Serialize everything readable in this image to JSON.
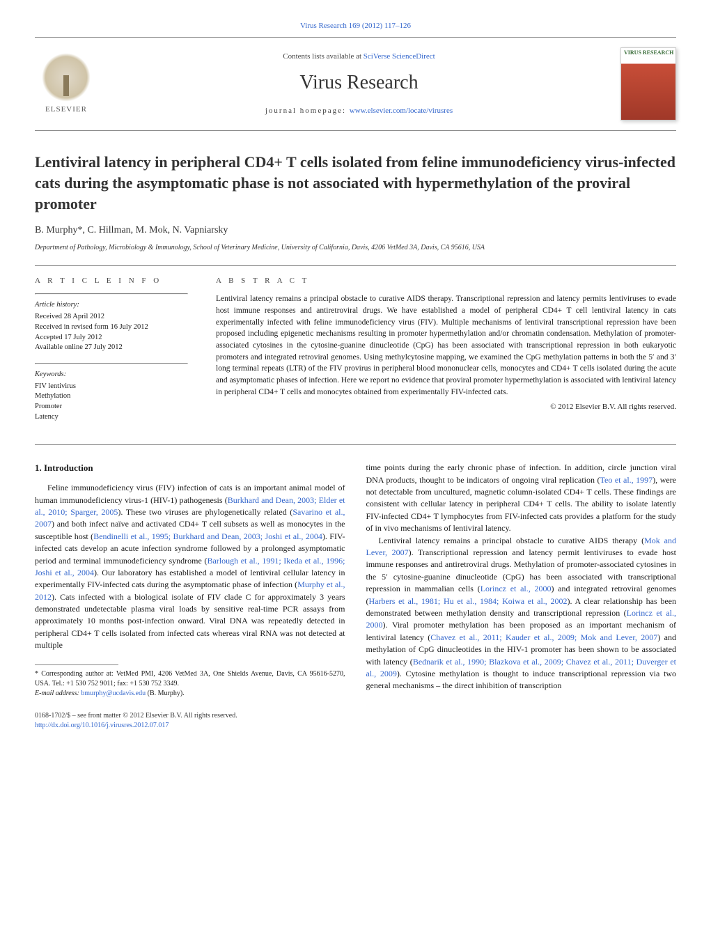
{
  "top_link_prefix": "Virus Research 169 (2012) 117–126",
  "header": {
    "contents_prefix": "Contents lists available at ",
    "contents_link": "SciVerse ScienceDirect",
    "journal": "Virus Research",
    "homepage_prefix": "journal homepage: ",
    "homepage_link": "www.elsevier.com/locate/virusres",
    "elsevier": "ELSEVIER",
    "cover_title": "VIRUS RESEARCH"
  },
  "title": "Lentiviral latency in peripheral CD4+ T cells isolated from feline immunodeficiency virus-infected cats during the asymptomatic phase is not associated with hypermethylation of the proviral promoter",
  "authors": "B. Murphy*, C. Hillman, M. Mok, N. Vapniarsky",
  "affiliation": "Department of Pathology, Microbiology & Immunology, School of Veterinary Medicine, University of California, Davis, 4206 VetMed 3A, Davis, CA 95616, USA",
  "info": {
    "label": "A R T I C L E   I N F O",
    "history_title": "Article history:",
    "history": [
      "Received 28 April 2012",
      "Received in revised form 16 July 2012",
      "Accepted 17 July 2012",
      "Available online 27 July 2012"
    ],
    "keywords_title": "Keywords:",
    "keywords": [
      "FIV lentivirus",
      "Methylation",
      "Promoter",
      "Latency"
    ]
  },
  "abstract": {
    "label": "A B S T R A C T",
    "text": "Lentiviral latency remains a principal obstacle to curative AIDS therapy. Transcriptional repression and latency permits lentiviruses to evade host immune responses and antiretroviral drugs. We have established a model of peripheral CD4+ T cell lentiviral latency in cats experimentally infected with feline immunodeficiency virus (FIV). Multiple mechanisms of lentiviral transcriptional repression have been proposed including epigenetic mechanisms resulting in promoter hypermethylation and/or chromatin condensation. Methylation of promoter-associated cytosines in the cytosine-guanine dinucleotide (CpG) has been associated with transcriptional repression in both eukaryotic promoters and integrated retroviral genomes. Using methylcytosine mapping, we examined the CpG methylation patterns in both the 5′ and 3′ long terminal repeats (LTR) of the FIV provirus in peripheral blood mononuclear cells, monocytes and CD4+ T cells isolated during the acute and asymptomatic phases of infection. Here we report no evidence that proviral promoter hypermethylation is associated with lentiviral latency in peripheral CD4+ T cells and monocytes obtained from experimentally FIV-infected cats.",
    "copyright": "© 2012 Elsevier B.V. All rights reserved."
  },
  "body": {
    "heading": "1.  Introduction",
    "p1a": "Feline immunodeficiency virus (FIV) infection of cats is an important animal model of human immunodeficiency virus-1 (HIV-1) pathogenesis (",
    "c1": "Burkhard and Dean, 2003; Elder et al., 2010; Sparger, 2005",
    "p1b": "). These two viruses are phylogenetically related (",
    "c2": "Savarino et al., 2007",
    "p1c": ") and both infect naïve and activated CD4+ T cell subsets as well as monocytes in the susceptible host (",
    "c3": "Bendinelli et al., 1995; Burkhard and Dean, 2003; Joshi et al., 2004",
    "p1d": "). FIV-infected cats develop an acute infection syndrome followed by a prolonged asymptomatic period and terminal immunodeficiency syndrome (",
    "c4": "Barlough et al., 1991; Ikeda et al., 1996; Joshi et al., 2004",
    "p1e": "). Our laboratory has established a model of lentiviral cellular latency in experimentally FIV-infected cats during the asymptomatic phase of infection (",
    "c5": "Murphy et al., 2012",
    "p1f": "). Cats infected with a biological isolate of FIV clade C for approximately 3 years demonstrated undetectable plasma viral loads by sensitive real-time PCR assays from approximately 10 months post-infection onward. Viral DNA was repeatedly detected in peripheral CD4+ T cells isolated from infected cats whereas viral RNA was not detected at multiple",
    "p2a": "time points during the early chronic phase of infection. In addition, circle junction viral DNA products, thought to be indicators of ongoing viral replication (",
    "c6": "Teo et al., 1997",
    "p2b": "), were not detectable from uncultured, magnetic column-isolated CD4+ T cells. These findings are consistent with cellular latency in peripheral CD4+ T cells. The ability to isolate latently FIV-infected CD4+ T lymphocytes from FIV-infected cats provides a platform for the study of in vivo mechanisms of lentiviral latency.",
    "p3a": "Lentiviral latency remains a principal obstacle to curative AIDS therapy (",
    "c7": "Mok and Lever, 2007",
    "p3b": "). Transcriptional repression and latency permit lentiviruses to evade host immune responses and antiretroviral drugs. Methylation of promoter-associated cytosines in the 5′ cytosine-guanine dinucleotide (CpG) has been associated with transcriptional repression in mammalian cells (",
    "c8": "Lorincz et al., 2000",
    "p3c": ") and integrated retroviral genomes (",
    "c9": "Harbers et al., 1981; Hu et al., 1984; Koiwa et al., 2002",
    "p3d": "). A clear relationship has been demonstrated between methylation density and transcriptional repression (",
    "c10": "Lorincz et al., 2000",
    "p3e": "). Viral promoter methylation has been proposed as an important mechanism of lentiviral latency (",
    "c11": "Chavez et al., 2011; Kauder et al., 2009; Mok and Lever, 2007",
    "p3f": ") and methylation of CpG dinucleotides in the HIV-1 promoter has been shown to be associated with latency (",
    "c12": "Bednarik et al., 1990; Blazkova et al., 2009; Chavez et al., 2011; Duverger et al., 2009",
    "p3g": "). Cytosine methylation is thought to induce transcriptional repression via two general mechanisms – the direct inhibition of transcription"
  },
  "footnote": {
    "line1": "* Corresponding author at: VetMed PMI, 4206 VetMed 3A, One Shields Avenue, Davis, CA 95616-5270, USA. Tel.: +1 530 752 9011; fax: +1 530 752 3349.",
    "line2_label": "E-mail address: ",
    "line2_email": "bmurphy@ucdavis.edu",
    "line2_suffix": " (B. Murphy)."
  },
  "footer": {
    "left1": "0168-1702/$ – see front matter © 2012 Elsevier B.V. All rights reserved.",
    "left2": "http://dx.doi.org/10.1016/j.virusres.2012.07.017"
  },
  "colors": {
    "link": "#3366cc",
    "rule": "#888888",
    "cover_top": "#ffffff",
    "cover_main": "#c84e38",
    "text": "#1a1a1a"
  },
  "typography": {
    "title_pt": 22,
    "journal_pt": 28,
    "body_pt": 12,
    "abstract_pt": 11.5,
    "footnote_pt": 10
  }
}
